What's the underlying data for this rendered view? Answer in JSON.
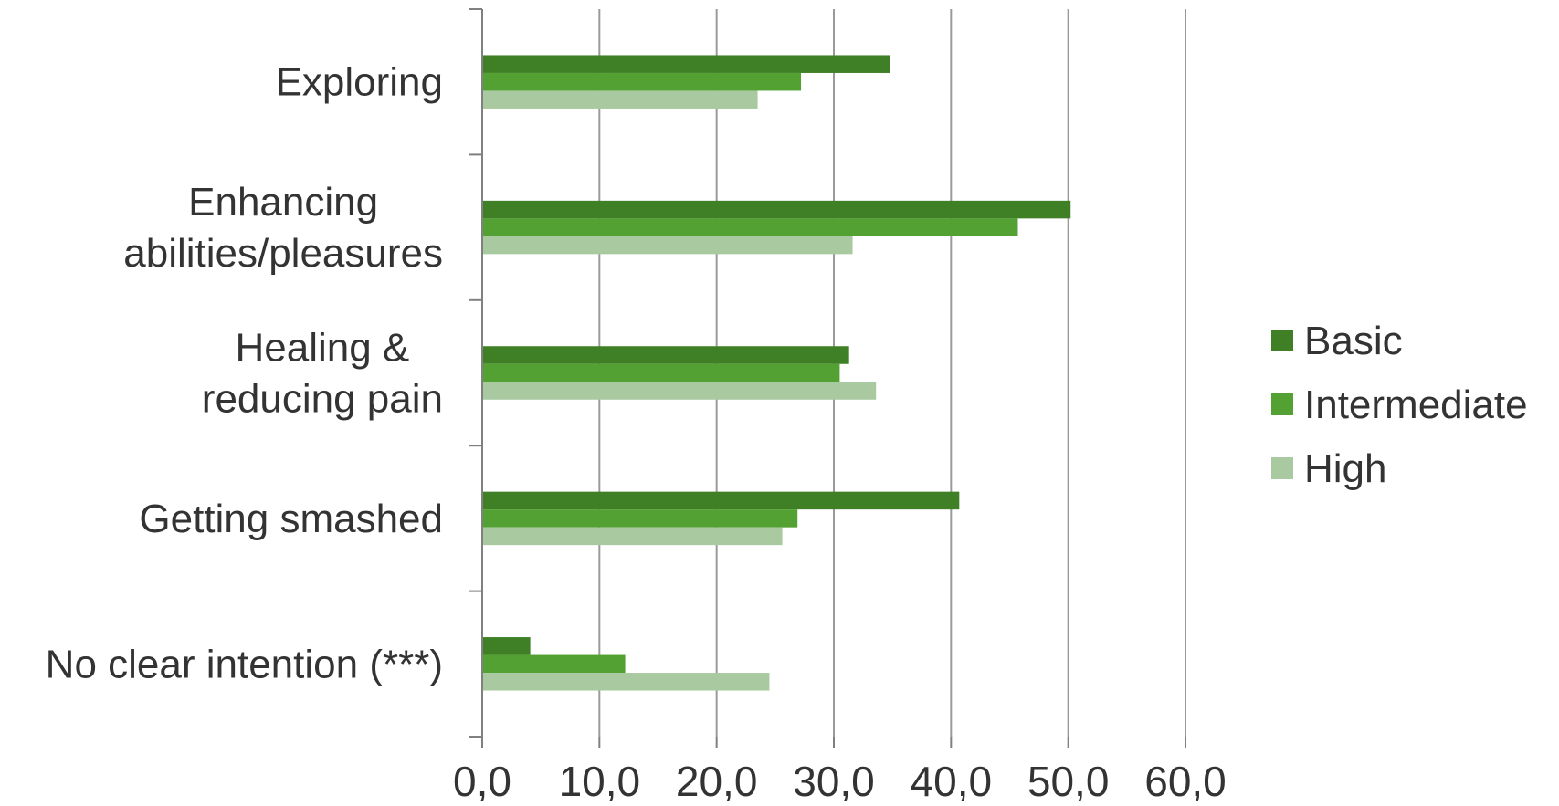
{
  "chart_data": {
    "type": "bar",
    "orientation": "horizontal",
    "categories": [
      [
        "Exploring"
      ],
      [
        "Enhancing",
        "abilities/pleasures"
      ],
      [
        "Healing &",
        "reducing pain"
      ],
      [
        "Getting smashed"
      ],
      [
        "No clear intention (***)"
      ]
    ],
    "series": [
      {
        "name": "Basic",
        "color": "#3f7f25",
        "values": [
          34.8,
          50.2,
          31.3,
          40.7,
          4.1
        ]
      },
      {
        "name": "Intermediate",
        "color": "#52a132",
        "values": [
          27.2,
          45.7,
          30.5,
          26.9,
          12.2
        ]
      },
      {
        "name": "High",
        "color": "#a9c9a0",
        "values": [
          23.5,
          31.6,
          33.6,
          25.6,
          24.5
        ]
      }
    ],
    "x_ticks": [
      "0,0",
      "10,0",
      "20,0",
      "30,0",
      "40,0",
      "50,0",
      "60,0"
    ],
    "xlim": [
      0,
      60
    ],
    "grid": true,
    "legend_position": "right"
  }
}
